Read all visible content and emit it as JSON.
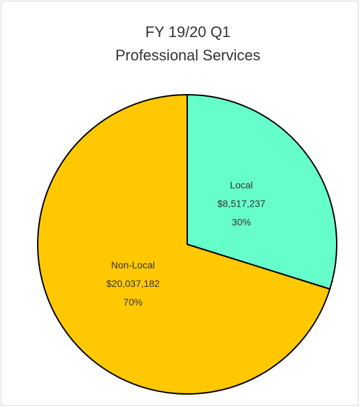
{
  "chart_data": {
    "type": "pie",
    "title": [
      "FY 19/20 Q1",
      "Professional Services"
    ],
    "categories": [
      "Local",
      "Non-Local"
    ],
    "values": [
      8517237,
      20037182
    ],
    "value_labels": [
      "$8,517,237",
      "$20,037,182"
    ],
    "percent_labels": [
      "30%",
      "70%"
    ],
    "colors": [
      "#66ffcc",
      "#ffc800"
    ]
  }
}
